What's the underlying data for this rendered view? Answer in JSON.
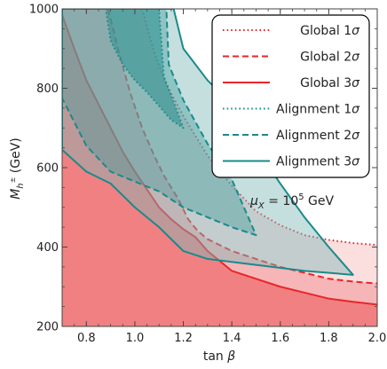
{
  "chart_data": {
    "type": "area",
    "xlabel": "tan β",
    "ylabel": "M_h± (GeV)",
    "xlabel_parts": {
      "main": "tan ",
      "greek": "β"
    },
    "ylabel_parts": {
      "main": "M",
      "sub": "h",
      "supsub": "±",
      "unit": " (GeV)"
    },
    "xlim": [
      0.7,
      2.0
    ],
    "ylim": [
      200,
      1000
    ],
    "xticks": [
      0.8,
      1.0,
      1.2,
      1.4,
      1.6,
      1.8,
      2.0
    ],
    "xtick_labels": [
      "0.8",
      "1.0",
      "1.2",
      "1.4",
      "1.6",
      "1.8",
      "2.0"
    ],
    "yticks": [
      200,
      400,
      600,
      800,
      1000
    ],
    "ytick_labels": [
      "200",
      "400",
      "600",
      "800",
      "1000"
    ],
    "annotation": {
      "prefix": "μ",
      "sub": "X",
      "mid": " = 10",
      "sup": "5",
      "suffix": " GeV"
    },
    "legend_position": "top-right",
    "legend": [
      {
        "prefix": "Global ",
        "level": "1",
        "sigma": "σ",
        "style": "dotted",
        "color": "#e8262a"
      },
      {
        "prefix": "Global ",
        "level": "2",
        "sigma": "σ",
        "style": "dashed",
        "color": "#e8262a"
      },
      {
        "prefix": "Global ",
        "level": "3",
        "sigma": "σ",
        "style": "solid",
        "color": "#e8262a"
      },
      {
        "prefix": "Alignment ",
        "level": "1",
        "sigma": "σ",
        "style": "dotted",
        "color": "#1a8a8a"
      },
      {
        "prefix": "Alignment ",
        "level": "2",
        "sigma": "σ",
        "style": "dashed",
        "color": "#1a8a8a"
      },
      {
        "prefix": "Alignment ",
        "level": "3",
        "sigma": "σ",
        "style": "solid",
        "color": "#1a8a8a"
      }
    ],
    "series": [
      {
        "group": "global",
        "level": 1,
        "style": "dotted",
        "color": "#e8262a",
        "fill": "#f9d3d3",
        "fill_opacity": 0.75,
        "boundary": [
          [
            1.03,
            1000
          ],
          [
            1.08,
            890
          ],
          [
            1.13,
            810
          ],
          [
            1.2,
            730
          ],
          [
            1.3,
            630
          ],
          [
            1.4,
            555
          ],
          [
            1.5,
            490
          ],
          [
            1.6,
            455
          ],
          [
            1.7,
            430
          ],
          [
            1.8,
            418
          ],
          [
            1.9,
            410
          ],
          [
            2.0,
            405
          ]
        ]
      },
      {
        "group": "global",
        "level": 2,
        "style": "dashed",
        "color": "#e8262a",
        "fill": "#f4a4a6",
        "fill_opacity": 0.7,
        "boundary": [
          [
            0.89,
            1000
          ],
          [
            0.93,
            900
          ],
          [
            0.98,
            790
          ],
          [
            1.03,
            700
          ],
          [
            1.08,
            630
          ],
          [
            1.12,
            580
          ],
          [
            1.18,
            520
          ],
          [
            1.22,
            470
          ],
          [
            1.26,
            440
          ],
          [
            1.3,
            420
          ],
          [
            1.35,
            405
          ],
          [
            1.4,
            390
          ],
          [
            1.5,
            370
          ],
          [
            1.6,
            350
          ],
          [
            1.7,
            335
          ],
          [
            1.8,
            320
          ],
          [
            1.9,
            313
          ],
          [
            2.0,
            308
          ]
        ]
      },
      {
        "group": "global",
        "level": 3,
        "style": "solid",
        "color": "#e8262a",
        "fill": "#f07374",
        "fill_opacity": 0.8,
        "boundary": [
          [
            0.7,
            985
          ],
          [
            0.75,
            900
          ],
          [
            0.8,
            820
          ],
          [
            0.85,
            760
          ],
          [
            0.9,
            700
          ],
          [
            0.95,
            640
          ],
          [
            1.0,
            590
          ],
          [
            1.05,
            545
          ],
          [
            1.1,
            500
          ],
          [
            1.15,
            470
          ],
          [
            1.2,
            445
          ],
          [
            1.25,
            425
          ],
          [
            1.3,
            390
          ],
          [
            1.35,
            365
          ],
          [
            1.4,
            340
          ],
          [
            1.5,
            320
          ],
          [
            1.6,
            300
          ],
          [
            1.7,
            285
          ],
          [
            1.8,
            270
          ],
          [
            1.9,
            262
          ],
          [
            2.0,
            255
          ]
        ]
      },
      {
        "group": "alignment",
        "level": 3,
        "style": "solid",
        "color": "#1a8a8a",
        "fill": "#7fb9b9",
        "fill_opacity": 0.45,
        "polygon": [
          [
            0.7,
            1000
          ],
          [
            1.16,
            1000
          ],
          [
            1.2,
            900
          ],
          [
            1.3,
            820
          ],
          [
            1.4,
            760
          ],
          [
            1.5,
            650
          ],
          [
            1.6,
            560
          ],
          [
            1.7,
            475
          ],
          [
            1.8,
            400
          ],
          [
            1.9,
            330
          ],
          [
            1.7,
            340
          ],
          [
            1.5,
            355
          ],
          [
            1.3,
            370
          ],
          [
            1.2,
            390
          ],
          [
            1.1,
            450
          ],
          [
            1.0,
            500
          ],
          [
            0.9,
            560
          ],
          [
            0.8,
            590
          ],
          [
            0.7,
            645
          ]
        ]
      },
      {
        "group": "alignment",
        "level": 2,
        "style": "dashed",
        "color": "#1a8a8a",
        "fill": "#3f9a9a",
        "fill_opacity": 0.4,
        "polygon": [
          [
            0.7,
            1000
          ],
          [
            1.13,
            1000
          ],
          [
            1.14,
            860
          ],
          [
            1.2,
            770
          ],
          [
            1.3,
            660
          ],
          [
            1.4,
            570
          ],
          [
            1.45,
            500
          ],
          [
            1.5,
            430
          ],
          [
            1.4,
            450
          ],
          [
            1.2,
            500
          ],
          [
            1.1,
            540
          ],
          [
            1.0,
            565
          ],
          [
            0.9,
            590
          ],
          [
            0.8,
            655
          ],
          [
            0.7,
            775
          ]
        ]
      },
      {
        "group": "alignment",
        "level": 1,
        "style": "dotted",
        "color": "#1a8a8a",
        "fill": "#2c8f8f",
        "fill_opacity": 0.55,
        "polygon": [
          [
            0.88,
            1000
          ],
          [
            1.1,
            1000
          ],
          [
            1.12,
            830
          ],
          [
            1.2,
            700
          ],
          [
            1.15,
            720
          ],
          [
            1.05,
            790
          ],
          [
            1.0,
            820
          ],
          [
            0.95,
            860
          ],
          [
            0.9,
            920
          ]
        ]
      }
    ]
  }
}
